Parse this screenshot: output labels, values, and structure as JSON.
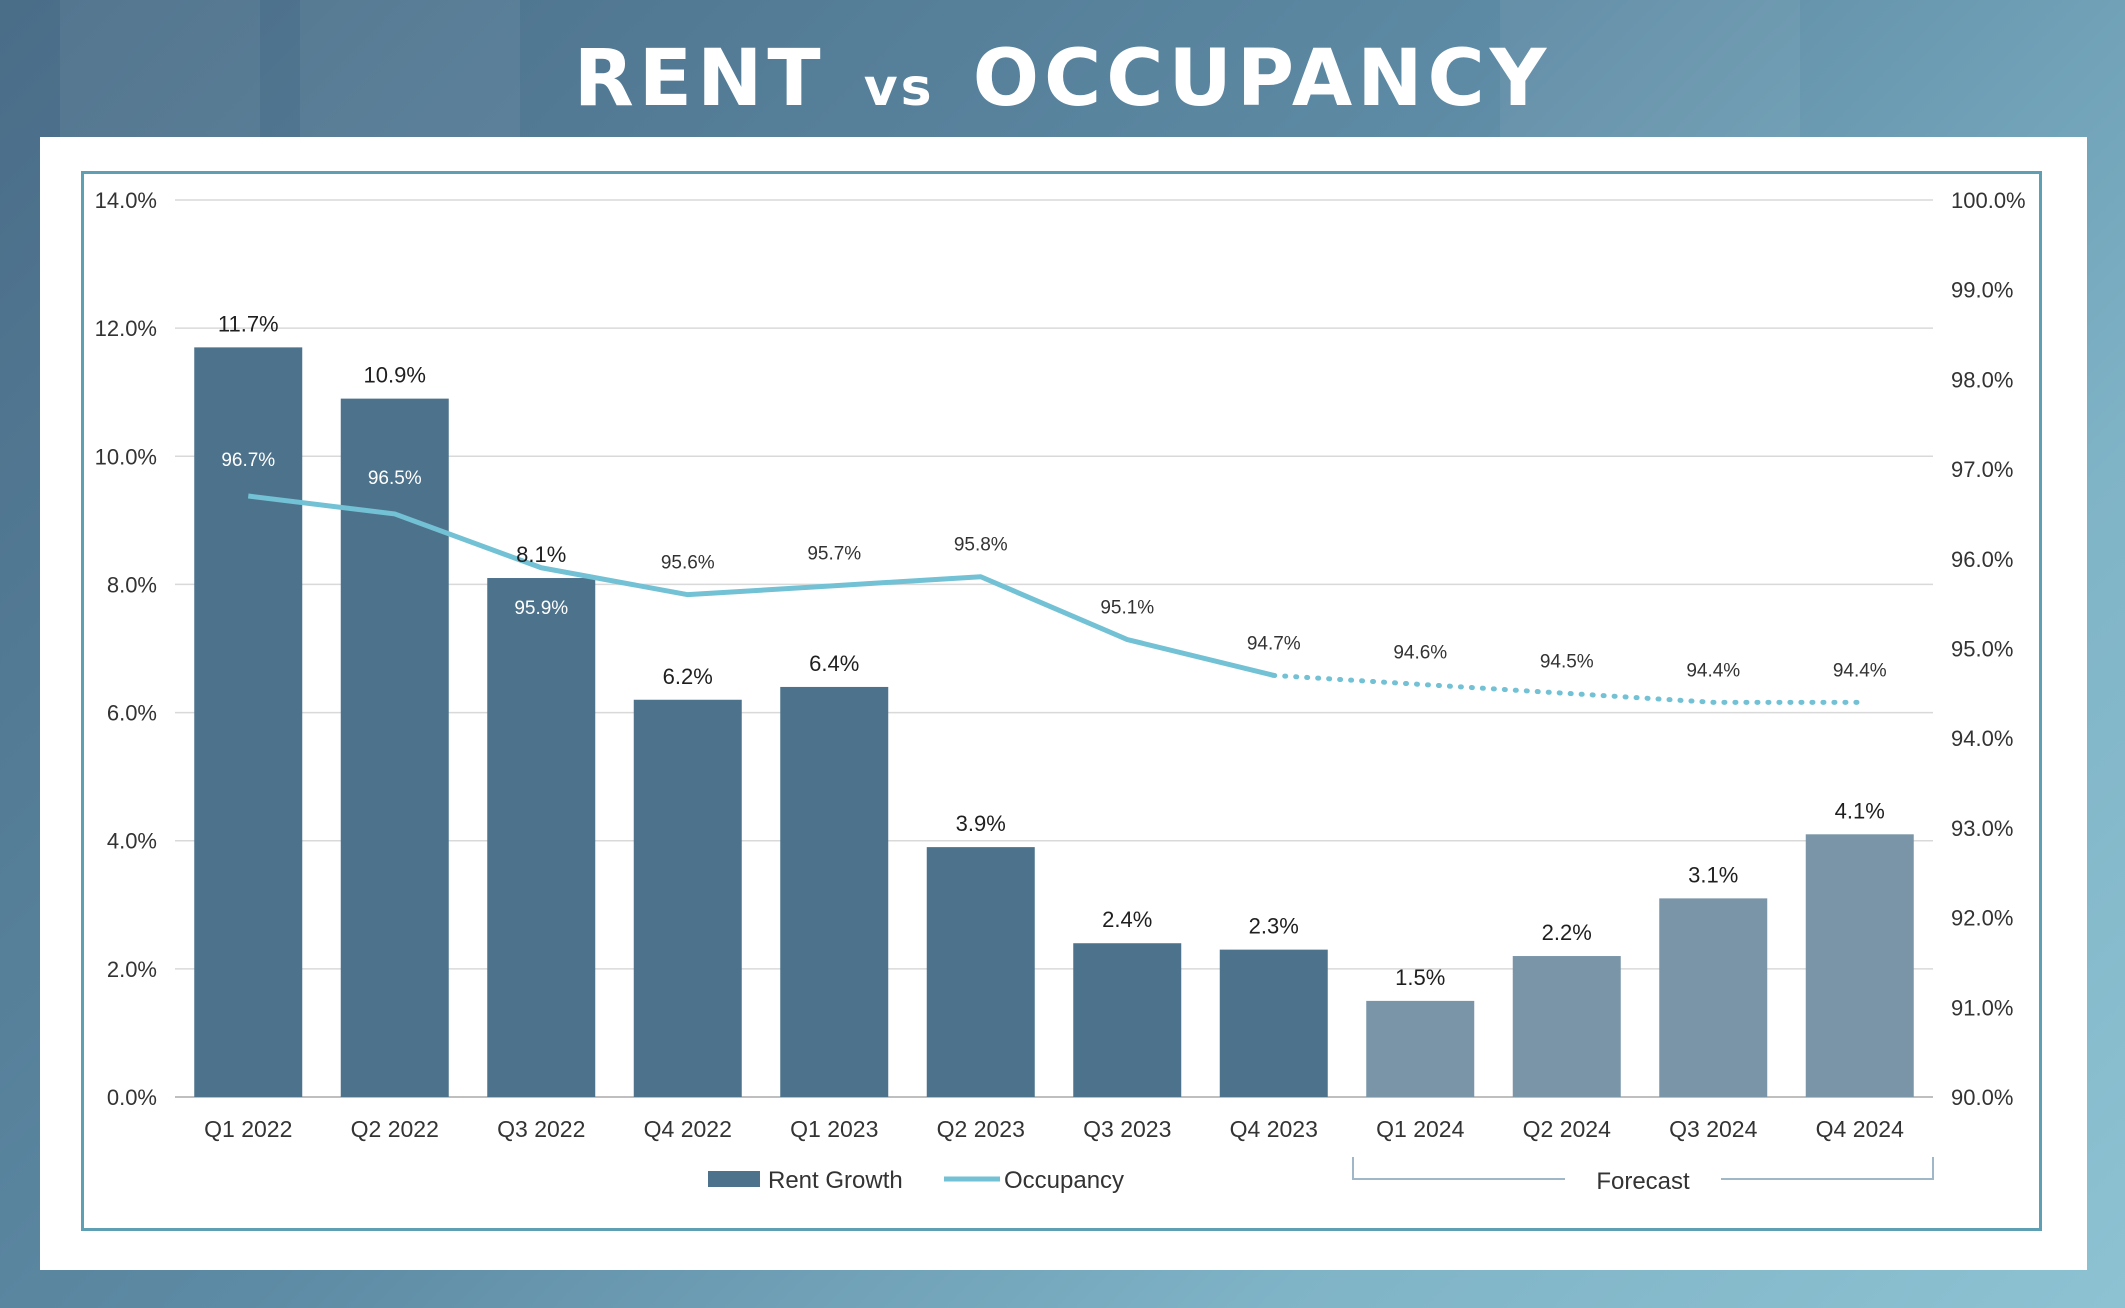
{
  "title": {
    "part1": "RENT",
    "part2": "vs",
    "part3": "OCCUPANCY"
  },
  "chart_data": {
    "type": "bar",
    "categories": [
      "Q1 2022",
      "Q2 2022",
      "Q3 2022",
      "Q4 2022",
      "Q1 2023",
      "Q2 2023",
      "Q3 2023",
      "Q4 2023",
      "Q1 2024",
      "Q2 2024",
      "Q3 2024",
      "Q4 2024"
    ],
    "series": [
      {
        "name": "Rent Growth",
        "type": "bar",
        "axis": "left",
        "values": [
          11.7,
          10.9,
          8.1,
          6.2,
          6.4,
          3.9,
          2.4,
          2.3,
          1.5,
          2.2,
          3.1,
          4.1
        ],
        "labels": [
          "11.7%",
          "10.9%",
          "8.1%",
          "6.2%",
          "6.4%",
          "3.9%",
          "2.4%",
          "2.3%",
          "1.5%",
          "2.2%",
          "3.1%",
          "4.1%"
        ],
        "color": "#4d728c",
        "forecast_color": "#7a95a8"
      },
      {
        "name": "Occupancy",
        "type": "line",
        "axis": "right",
        "values": [
          96.7,
          96.5,
          95.9,
          95.6,
          95.7,
          95.8,
          95.1,
          94.7,
          94.6,
          94.5,
          94.4,
          94.4
        ],
        "labels": [
          "96.7%",
          "96.5%",
          "95.9%",
          "95.6%",
          "95.7%",
          "95.8%",
          "95.1%",
          "94.7%",
          "94.6%",
          "94.5%",
          "94.4%",
          "94.4%"
        ],
        "color": "#72c1d4"
      }
    ],
    "forecast_start_index": 8,
    "forecast_label": "Forecast",
    "y_left": {
      "min": 0,
      "max": 14,
      "ticks": [
        "0.0%",
        "2.0%",
        "4.0%",
        "6.0%",
        "8.0%",
        "10.0%",
        "12.0%",
        "14.0%"
      ]
    },
    "y_right": {
      "min": 90,
      "max": 100,
      "ticks": [
        "90.0%",
        "91.0%",
        "92.0%",
        "93.0%",
        "94.0%",
        "95.0%",
        "96.0%",
        "97.0%",
        "98.0%",
        "99.0%",
        "100.0%"
      ]
    },
    "grid": true,
    "legend_position": "bottom-center"
  }
}
